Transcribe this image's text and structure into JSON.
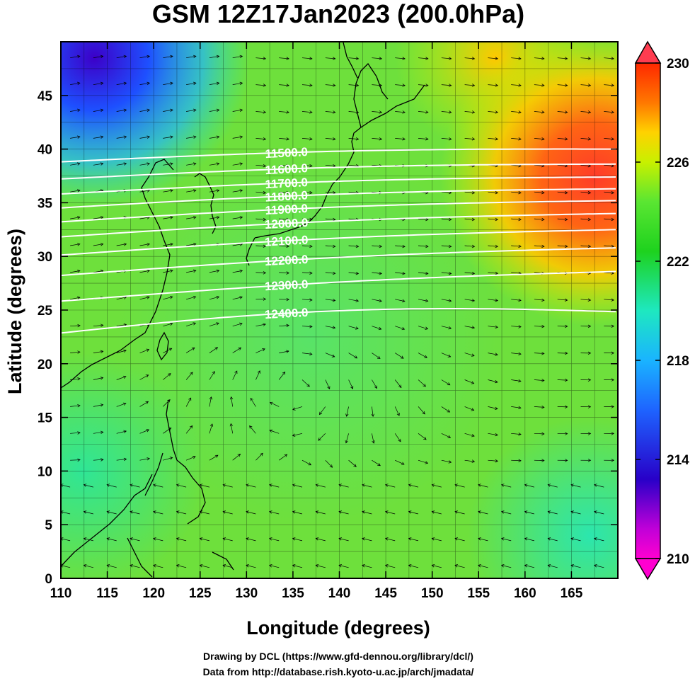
{
  "title": "GSM 12Z17Jan2023 (200.0hPa)",
  "x_axis": {
    "label": "Longitude (degrees)",
    "range": [
      110,
      170
    ],
    "ticks": [
      "110",
      "115",
      "120",
      "125",
      "130",
      "135",
      "140",
      "145",
      "150",
      "155",
      "160",
      "165"
    ]
  },
  "y_axis": {
    "label": "Latitude  (degrees)",
    "range": [
      0,
      50
    ],
    "ticks": [
      "0",
      "5",
      "10",
      "15",
      "20",
      "25",
      "30",
      "35",
      "40",
      "45"
    ]
  },
  "colorbar": {
    "min": 210,
    "max": 230,
    "labels": [
      "230",
      "226",
      "222",
      "218",
      "214",
      "210"
    ]
  },
  "contours": [
    {
      "label": "11500.0",
      "lat": 40.0
    },
    {
      "label": "11600.0",
      "lat": 38.6
    },
    {
      "label": "11700.0",
      "lat": 37.4
    },
    {
      "label": "11800.0",
      "lat": 36.3
    },
    {
      "label": "11900.0",
      "lat": 35.2
    },
    {
      "label": "12000.0",
      "lat": 34.0
    },
    {
      "label": "12100.0",
      "lat": 32.5
    },
    {
      "label": "12200.0",
      "lat": 30.8
    },
    {
      "label": "12300.0",
      "lat": 28.6
    },
    {
      "label": "12400.0",
      "lat": 25.5
    }
  ],
  "credits": {
    "line1": "Drawing by DCL (https://www.gfd-dennou.org/library/dcl/)",
    "line2": "Data from http://database.rish.kyoto-u.ac.jp/arch/jmadata/"
  },
  "colors": {
    "contour": "#ffffff",
    "vector": "#000000",
    "coast": "#000000"
  }
}
